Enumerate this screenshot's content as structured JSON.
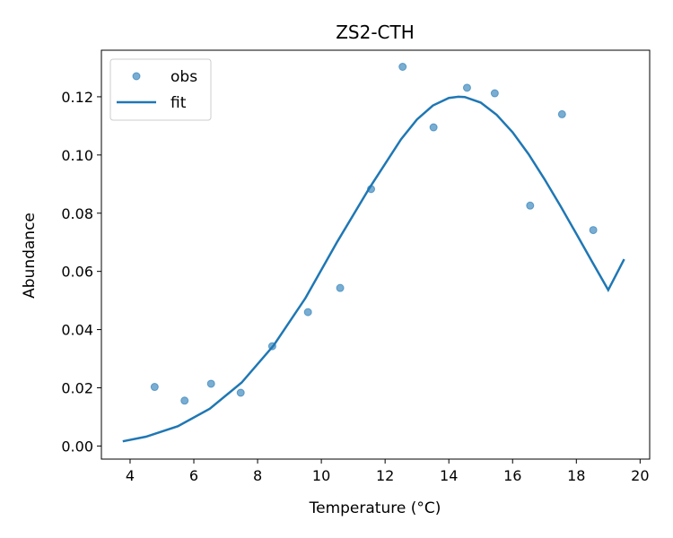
{
  "chart_data": {
    "type": "scatter",
    "title": "ZS2-CTH",
    "xlabel": "Temperature (°C)",
    "ylabel": "Abundance",
    "xlim": [
      3.1,
      20.3
    ],
    "ylim": [
      -0.0045,
      0.136
    ],
    "xticks": [
      4,
      6,
      8,
      10,
      12,
      14,
      16,
      18,
      20
    ],
    "xtick_labels": [
      "4",
      "6",
      "8",
      "10",
      "12",
      "14",
      "16",
      "18",
      "20"
    ],
    "yticks": [
      0.0,
      0.02,
      0.04,
      0.06,
      0.08,
      0.1,
      0.12
    ],
    "ytick_labels": [
      "0.00",
      "0.02",
      "0.04",
      "0.06",
      "0.08",
      "0.10",
      "0.12"
    ],
    "grid": false,
    "legend": {
      "position": "top-left",
      "entries": [
        {
          "label": "obs",
          "kind": "marker"
        },
        {
          "label": "fit",
          "kind": "line"
        }
      ]
    },
    "series": [
      {
        "name": "obs",
        "kind": "scatter",
        "color": "#1f77b4",
        "x": [
          4.77,
          5.71,
          6.54,
          7.47,
          8.46,
          9.58,
          10.59,
          11.56,
          12.55,
          13.52,
          14.57,
          15.44,
          16.55,
          17.55,
          18.53
        ],
        "y": [
          0.0203,
          0.0156,
          0.0214,
          0.0183,
          0.0343,
          0.046,
          0.0543,
          0.0883,
          0.1303,
          0.1095,
          0.1231,
          0.1212,
          0.0826,
          0.114,
          0.0742
        ]
      },
      {
        "name": "fit",
        "kind": "line",
        "color": "#1f77b4",
        "x": [
          3.77,
          4.5,
          5.5,
          6.5,
          7.5,
          8.5,
          9.5,
          10.5,
          11.5,
          12.5,
          13.0,
          13.5,
          14.0,
          14.3,
          14.5,
          15.0,
          15.5,
          16.0,
          16.5,
          17.0,
          17.5,
          18.0,
          18.5,
          19.0,
          19.5
        ],
        "y": [
          0.0016,
          0.0032,
          0.0068,
          0.0128,
          0.0218,
          0.0345,
          0.0508,
          0.0702,
          0.0885,
          0.1054,
          0.1122,
          0.117,
          0.1196,
          0.12,
          0.1199,
          0.118,
          0.1138,
          0.1078,
          0.1003,
          0.0917,
          0.0825,
          0.0729,
          0.0632,
          0.0536,
          0.0642
        ]
      }
    ]
  }
}
